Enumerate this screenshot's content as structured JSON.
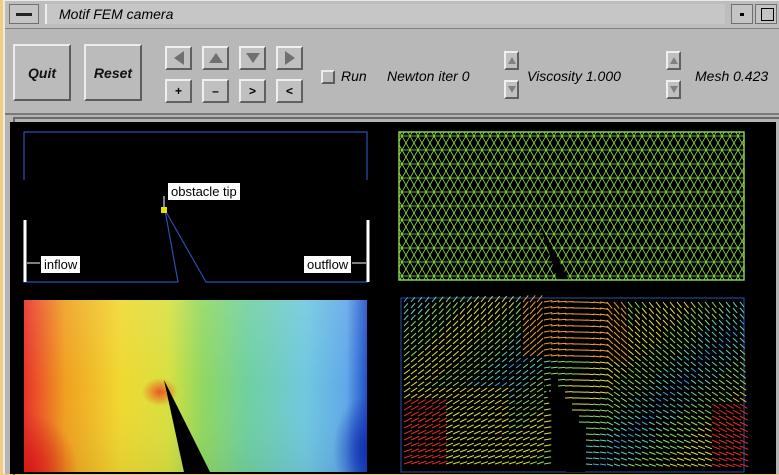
{
  "window": {
    "title": "Motif FEM camera"
  },
  "toolbar": {
    "quit_label": "Quit",
    "reset_label": "Reset",
    "nav": {
      "left_icon": "arrow-left-icon",
      "up_icon": "arrow-up-icon",
      "down_icon": "arrow-down-icon",
      "right_icon": "arrow-right-icon",
      "zoom_in_label": "+",
      "zoom_out_label": "–",
      "rotate_cw_label": ">",
      "rotate_ccw_label": "<"
    },
    "run_label": "Run",
    "newton_label": "Newton iter 0",
    "viscosity_label": "Viscosity 1.000",
    "mesh_label": "Mesh 0.423"
  },
  "geometry_panel": {
    "obstacle_label": "obstacle tip",
    "inflow_label": "inflow",
    "outflow_label": "outflow"
  },
  "colors": {
    "desktop": "#f2cf7e",
    "chrome": "#b8b8b8",
    "canvas": "#000000",
    "outline": "#2a4fb0",
    "mesh": "#8ee04a",
    "obstacle_tip": "#e8e000"
  }
}
